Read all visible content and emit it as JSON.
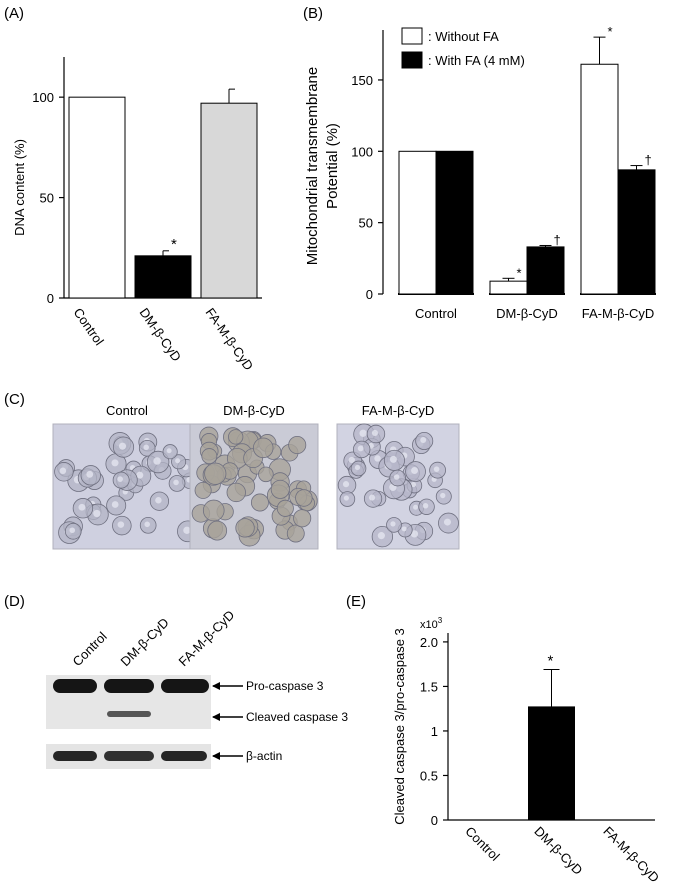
{
  "panel_labels": {
    "a": "(A)",
    "b": "(B)",
    "c": "(C)",
    "d": "(D)",
    "e": "(E)"
  },
  "chart_data": [
    {
      "id": "A",
      "type": "bar",
      "categories": [
        "Control",
        "DM-β-CyD",
        "FA-M-β-CyD"
      ],
      "values": [
        100,
        21,
        97
      ],
      "errors": [
        0,
        2.5,
        7
      ],
      "bar_colors": [
        "#ffffff",
        "#000000",
        "#d8d8d8"
      ],
      "annotations": [
        "",
        "*",
        ""
      ],
      "ylabel": "DNA content (%)",
      "ylim": [
        0,
        120
      ],
      "yticks": [
        0,
        50,
        100
      ],
      "grid": false
    },
    {
      "id": "B",
      "type": "bar",
      "categories": [
        "Control",
        "DM-β-CyD",
        "FA-M-β-CyD"
      ],
      "series": [
        {
          "name": ": Without FA",
          "color": "#ffffff",
          "values": [
            100,
            9,
            161
          ],
          "errors": [
            0,
            2,
            19
          ],
          "annotations": [
            "",
            "*",
            "*"
          ]
        },
        {
          "name": ": With FA (4 mM)",
          "color": "#000000",
          "values": [
            100,
            33,
            87
          ],
          "errors": [
            0,
            1,
            3
          ],
          "annotations": [
            "",
            "†",
            "†"
          ]
        }
      ],
      "ylabel_lines": [
        "Mitochondrial transmembrane",
        "Potential (%)"
      ],
      "ylim": [
        0,
        185
      ],
      "yticks": [
        0,
        50,
        100,
        150
      ],
      "legend_position": "top-left",
      "grid": false
    },
    {
      "id": "E",
      "type": "bar",
      "categories": [
        "Control",
        "DM-β-CyD",
        "FA-M-β-CyD"
      ],
      "values": [
        0,
        1.27,
        0
      ],
      "errors": [
        0,
        0.42,
        0
      ],
      "annotations": [
        "",
        "*",
        ""
      ],
      "bar_colors": [
        "#000000",
        "#000000",
        "#000000"
      ],
      "ylabel": "Cleaved caspase 3/pro-caspase 3",
      "scale_label": "x10",
      "scale_exp": "3",
      "ylim": [
        0,
        2.1
      ],
      "yticks": [
        0,
        0.5,
        1,
        1.5,
        2
      ],
      "ytick_labels": [
        "0",
        "0.5",
        "1",
        "1.5",
        "2.0"
      ],
      "grid": false
    }
  ],
  "micrographs": {
    "labels": [
      "Control",
      "DM-β-CyD",
      "FA-M-β-CyD"
    ]
  },
  "blot": {
    "lane_labels": [
      "Control",
      "DM-β-CyD",
      "FA-M-β-CyD"
    ],
    "band_labels": [
      "Pro-caspase 3",
      "Cleaved caspase 3",
      "β-actin"
    ]
  }
}
